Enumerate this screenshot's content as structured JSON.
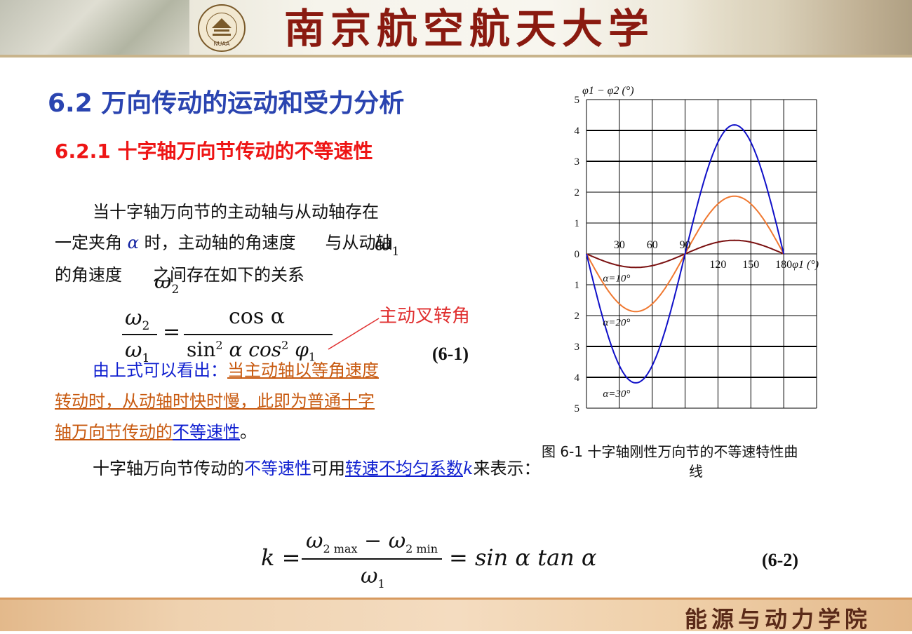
{
  "header": {
    "university": "南京航空航天大学",
    "seal_abbr": "NUAA"
  },
  "footer": {
    "college": "能源与动力学院"
  },
  "section": {
    "title": "6.2  万向传动的运动和受力分析",
    "subtitle": "6.2.1  十字轴万向节传动的不等速性"
  },
  "paragraph1": {
    "line1": "当十字轴万向节的主动轴与从动轴存在",
    "line2_a": "一定夹角",
    "alpha": "α",
    "line2_b": "时，主动轴的角速度",
    "line2_c": "与从动轴",
    "line3_a": "的角速度",
    "line3_b": "之间存在如下的关系",
    "omega1": "ω",
    "omega1_sub": "1",
    "omega2": "ω",
    "omega2_sub": "2"
  },
  "equation1": {
    "lhs_num": "ω",
    "lhs_num_sub": "2",
    "lhs_den": "ω",
    "lhs_den_sub": "1",
    "eq": "=",
    "rhs_num": "cos α",
    "rhs_den_a": "sin",
    "rhs_den_sup1": "2",
    "rhs_den_b": "α cos",
    "rhs_den_sup2": "2",
    "rhs_den_c": "φ",
    "rhs_den_c_sub": "1",
    "label": "(6-1)",
    "annotation": "主动叉转角"
  },
  "paragraph2": {
    "lead": "由上式可以看出：",
    "u1": "当主动轴以等角速度",
    "line2": "转动时，从动轴时快时慢，此即为普通十字",
    "line3_u": "轴万向节传动的",
    "line3_b": "不等速性",
    "line3_end": "。"
  },
  "paragraph3": {
    "a": "十字轴万向节传动的",
    "b": "不等速性",
    "c": "可用",
    "d": "转速不均匀系数",
    "e": "k",
    "f": "来表示："
  },
  "equation2": {
    "lhs": "k =",
    "num_a": "ω",
    "num_a_sub": "2 max",
    "minus": " − ",
    "num_b": "ω",
    "num_b_sub": "2 min",
    "den": "ω",
    "den_sub": "1",
    "rhs": "= sin α tan α",
    "label": "(6-2)"
  },
  "figure": {
    "caption_line1": "图 6-1    十字轴刚性万向节的不等速特性曲",
    "caption_line2": "线"
  },
  "chart_data": {
    "type": "line",
    "ylabel": "φ1 − φ2 (°)",
    "xlabel": "φ1 (°)",
    "xlim": [
      0,
      210
    ],
    "ylim": [
      -5,
      5
    ],
    "x_tick_labels": [
      "30",
      "60",
      "90",
      "120",
      "150",
      "180"
    ],
    "y_tick_labels": [
      "5",
      "4",
      "3",
      "2",
      "1",
      "0",
      "1",
      "2",
      "3",
      "4",
      "5"
    ],
    "grid": true,
    "series": [
      {
        "name": "α=10°",
        "color": "#7a1010",
        "amplitude": 0.44
      },
      {
        "name": "α=20°",
        "color": "#f07830",
        "amplitude": 1.87
      },
      {
        "name": "α=30°",
        "color": "#1010c8",
        "amplitude": 4.18
      }
    ]
  }
}
